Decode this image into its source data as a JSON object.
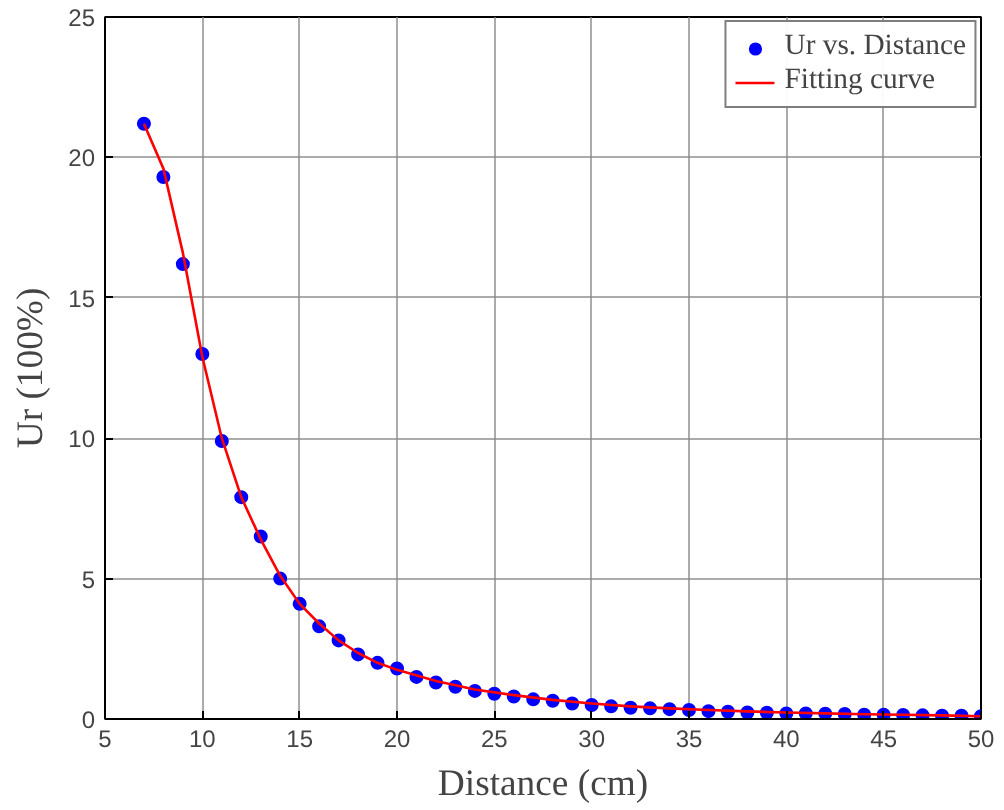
{
  "chart_data": {
    "type": "scatter",
    "xlabel": "Distance (cm)",
    "ylabel": "Ur (100%)",
    "xlim": [
      5,
      50
    ],
    "ylim": [
      0,
      25
    ],
    "xticks": [
      5,
      10,
      15,
      20,
      25,
      30,
      35,
      40,
      45,
      50
    ],
    "yticks": [
      0,
      5,
      10,
      15,
      20,
      25
    ],
    "grid": true,
    "legend": "top right",
    "series": [
      {
        "name": "Ur vs. Distance",
        "marker": "circle",
        "color": "#0000ff",
        "x": [
          7,
          8,
          9,
          10,
          11,
          12,
          13,
          14,
          15,
          16,
          17,
          18,
          19,
          20,
          21,
          22,
          23,
          24,
          25,
          26,
          27,
          28,
          29,
          30,
          31,
          32,
          33,
          34,
          35,
          36,
          37,
          38,
          39,
          40,
          41,
          42,
          43,
          44,
          45,
          46,
          47,
          48,
          49,
          50
        ],
        "values": [
          21.2,
          19.3,
          16.2,
          13.0,
          9.9,
          7.9,
          6.5,
          5.0,
          4.1,
          3.3,
          2.8,
          2.3,
          2.0,
          1.8,
          1.5,
          1.3,
          1.15,
          1.0,
          0.9,
          0.8,
          0.7,
          0.65,
          0.55,
          0.5,
          0.45,
          0.4,
          0.38,
          0.35,
          0.32,
          0.28,
          0.26,
          0.23,
          0.22,
          0.2,
          0.2,
          0.19,
          0.18,
          0.15,
          0.15,
          0.14,
          0.13,
          0.12,
          0.12,
          0.1
        ]
      },
      {
        "name": "Fitting curve",
        "type": "line",
        "line_style": "solid",
        "color": "#ff0000",
        "x": [
          7,
          8,
          9,
          10,
          11,
          12,
          13,
          14,
          15,
          16,
          17,
          18,
          19,
          20,
          22,
          24,
          26,
          28,
          30,
          32,
          34,
          36,
          38,
          40,
          42,
          44,
          46,
          48,
          50
        ],
        "values": [
          21.2,
          19.6,
          16.6,
          12.9,
          10.0,
          7.9,
          6.4,
          5.1,
          4.1,
          3.4,
          2.8,
          2.35,
          2.0,
          1.75,
          1.35,
          1.05,
          0.85,
          0.68,
          0.55,
          0.45,
          0.38,
          0.32,
          0.27,
          0.23,
          0.2,
          0.17,
          0.15,
          0.13,
          0.1
        ]
      }
    ]
  }
}
